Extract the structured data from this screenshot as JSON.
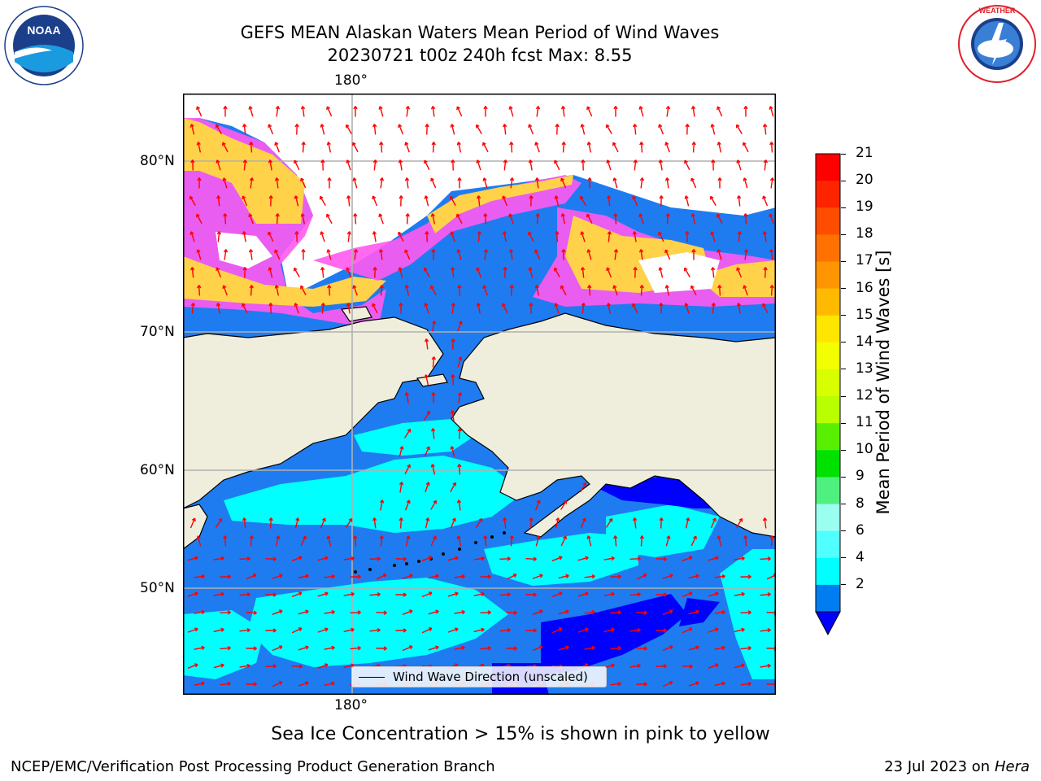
{
  "title": {
    "line1": "GEFS MEAN Alaskan Waters Mean Period of Wind Waves",
    "line2": "20230721 t00z 240h fcst   Max: 8.55"
  },
  "map": {
    "lon_top_label": "180°",
    "lon_bottom_label": "180°",
    "lat_labels": [
      "80°N",
      "70°N",
      "60°N",
      "50°N"
    ],
    "legend": "Wind Wave Direction (unscaled)",
    "colors": {
      "ocean_deep": "#1e7cf0",
      "ocean_low": "#0000ff",
      "ocean_cyan": "#00ffff",
      "land": "#efeedc",
      "ice_pink": "#ff40ff",
      "ice_yellow": "#ffd24a",
      "arrow": "#ff0000",
      "grid": "#b0b0b0"
    }
  },
  "colorbar": {
    "label": "Mean Period of Wind Waves [s]",
    "ticks": [
      "21",
      "20",
      "19",
      "18",
      "17",
      "16",
      "15",
      "14",
      "13",
      "12",
      "11",
      "10",
      "9",
      "8",
      "6",
      "4",
      "2"
    ],
    "colors": [
      "#ff0000",
      "#ff2400",
      "#ff4d00",
      "#ff7100",
      "#ff9500",
      "#ffba00",
      "#ffe600",
      "#f2ff00",
      "#d7ff00",
      "#b9ff00",
      "#58f000",
      "#00e100",
      "#50f080",
      "#9bfff0",
      "#50ffff",
      "#00ffff",
      "#007df0"
    ],
    "under_color": "#0000ff"
  },
  "footer": {
    "note": "Sea Ice Concentration > 15% is shown in pink to yellow",
    "credit": "NCEP/EMC/Verification Post Processing Product Generation Branch",
    "date": "23 Jul 2023 on ",
    "machine": "Hera"
  },
  "logos": {
    "noaa": "NOAA",
    "nws_ring": "NATIONAL WEATHER SERVICE"
  }
}
